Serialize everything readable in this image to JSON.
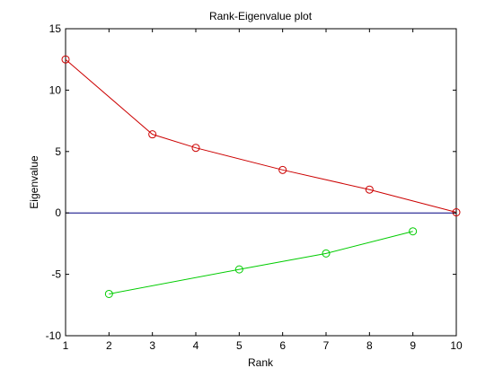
{
  "chart_data": {
    "type": "line",
    "title": "Rank-Eigenvalue plot",
    "xlabel": "Rank",
    "ylabel": "Eigenvalue",
    "xlim": [
      1,
      10
    ],
    "ylim": [
      -10,
      15
    ],
    "xticks": [
      1,
      2,
      3,
      4,
      5,
      6,
      7,
      8,
      9,
      10
    ],
    "yticks": [
      -10,
      -5,
      0,
      5,
      10,
      15
    ],
    "xtick_labels": [
      "1",
      "2",
      "3",
      "4",
      "5",
      "6",
      "7",
      "8",
      "9",
      "10"
    ],
    "ytick_labels": [
      "-10",
      "-5",
      "0",
      "5",
      "10",
      "15"
    ],
    "grid": false,
    "legend": "none",
    "zero_line": {
      "y": 0,
      "color": "#000080"
    },
    "series": [
      {
        "color": "#cc0000",
        "marker": "circle-open",
        "x": [
          1,
          3,
          4,
          6,
          8,
          10
        ],
        "y": [
          12.5,
          6.4,
          5.3,
          3.5,
          1.9,
          0.05
        ]
      },
      {
        "color": "#00cc00",
        "marker": "circle-open",
        "x": [
          2,
          5,
          7,
          9
        ],
        "y": [
          -6.6,
          -4.6,
          -3.3,
          -1.5
        ]
      }
    ]
  }
}
